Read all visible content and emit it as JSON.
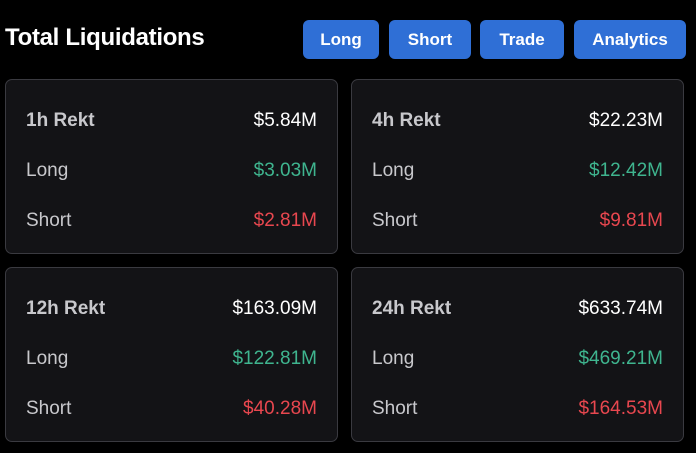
{
  "header": {
    "title": "Total Liquidations",
    "buttons": {
      "long": "Long",
      "short": "Short",
      "trade": "Trade",
      "analytics": "Analytics"
    }
  },
  "cards": [
    {
      "period_label": "1h Rekt",
      "total": "$5.84M",
      "long_label": "Long",
      "long": "$3.03M",
      "short_label": "Short",
      "short": "$2.81M"
    },
    {
      "period_label": "4h Rekt",
      "total": "$22.23M",
      "long_label": "Long",
      "long": "$12.42M",
      "short_label": "Short",
      "short": "$9.81M"
    },
    {
      "period_label": "12h Rekt",
      "total": "$163.09M",
      "long_label": "Long",
      "long": "$122.81M",
      "short_label": "Short",
      "short": "$40.28M"
    },
    {
      "period_label": "24h Rekt",
      "total": "$633.74M",
      "long_label": "Long",
      "long": "$469.21M",
      "short_label": "Short",
      "short": "$164.53M"
    }
  ],
  "colors": {
    "button_bg": "#2f6fd6",
    "long_value": "#3fb58f",
    "short_value": "#e8474f",
    "card_bg": "#131316"
  }
}
